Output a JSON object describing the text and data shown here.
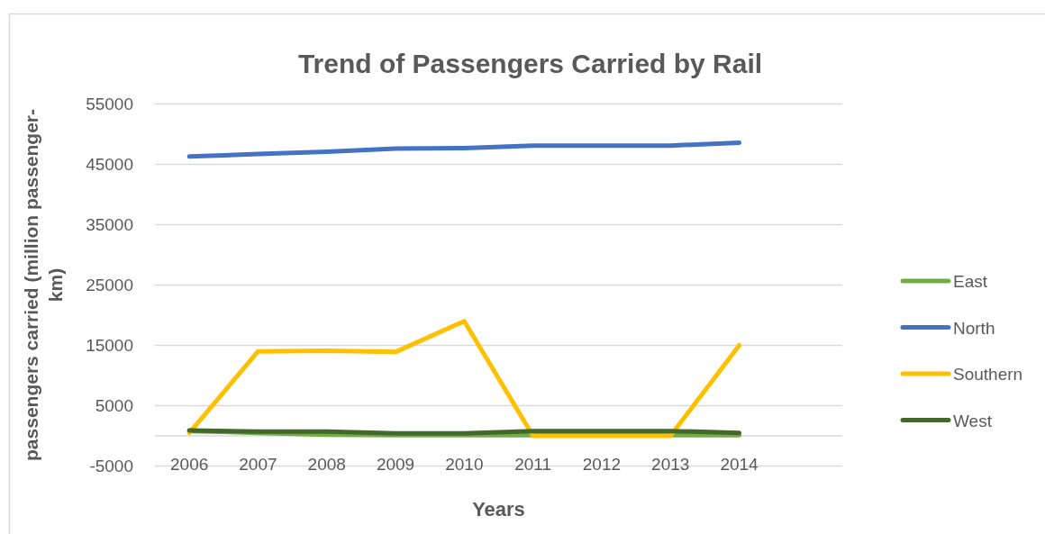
{
  "chart_data": {
    "type": "line",
    "title": "Trend of Passengers Carried by Rail",
    "xlabel": "Years",
    "ylabel": "passengers carried (million passenger-km)",
    "categories": [
      "2006",
      "2007",
      "2008",
      "2009",
      "2010",
      "2011",
      "2012",
      "2013",
      "2014",
      null
    ],
    "series": [
      {
        "name": "East",
        "color": "#70ad47",
        "values": [
          800,
          500,
          200,
          100,
          100,
          100,
          100,
          100,
          100,
          null
        ]
      },
      {
        "name": "North",
        "color": "#4472c4",
        "values": [
          46300,
          46700,
          47100,
          47600,
          47700,
          48100,
          48100,
          48100,
          48600,
          null
        ]
      },
      {
        "name": "Southern",
        "color": "#ffc000",
        "values": [
          500,
          14000,
          14100,
          13900,
          19000,
          0,
          0,
          0,
          15000,
          null
        ]
      },
      {
        "name": "West",
        "color": "#43682b",
        "values": [
          900,
          700,
          700,
          400,
          400,
          800,
          800,
          800,
          500,
          null
        ]
      }
    ],
    "ylim": [
      -5000,
      55000
    ],
    "yticks": [
      -5000,
      {
        "value": 0,
        "label": null
      },
      5000,
      15000,
      25000,
      35000,
      45000,
      55000
    ],
    "grid": "y",
    "legend": "right",
    "line_style": "solid"
  }
}
